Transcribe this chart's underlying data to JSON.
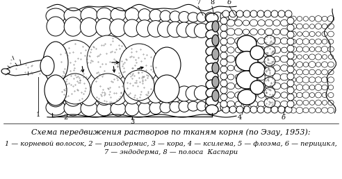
{
  "title_line1": "Схема передвижения растворов по тканям корня (по Эзау, 1953):",
  "caption_line2": "1 — корневой волосок, 2 — ризодермис, 3 — кора, 4 — ксилема, 5 — флоэма, 6 — перицикл,",
  "caption_line3": "7 — эндодерма, 8 — полоса  Каспари",
  "fig_width": 4.92,
  "fig_height": 2.58,
  "dpi": 100,
  "title_fontsize": 8.0,
  "caption_fontsize": 7.0,
  "label_fontsize": 7.0
}
